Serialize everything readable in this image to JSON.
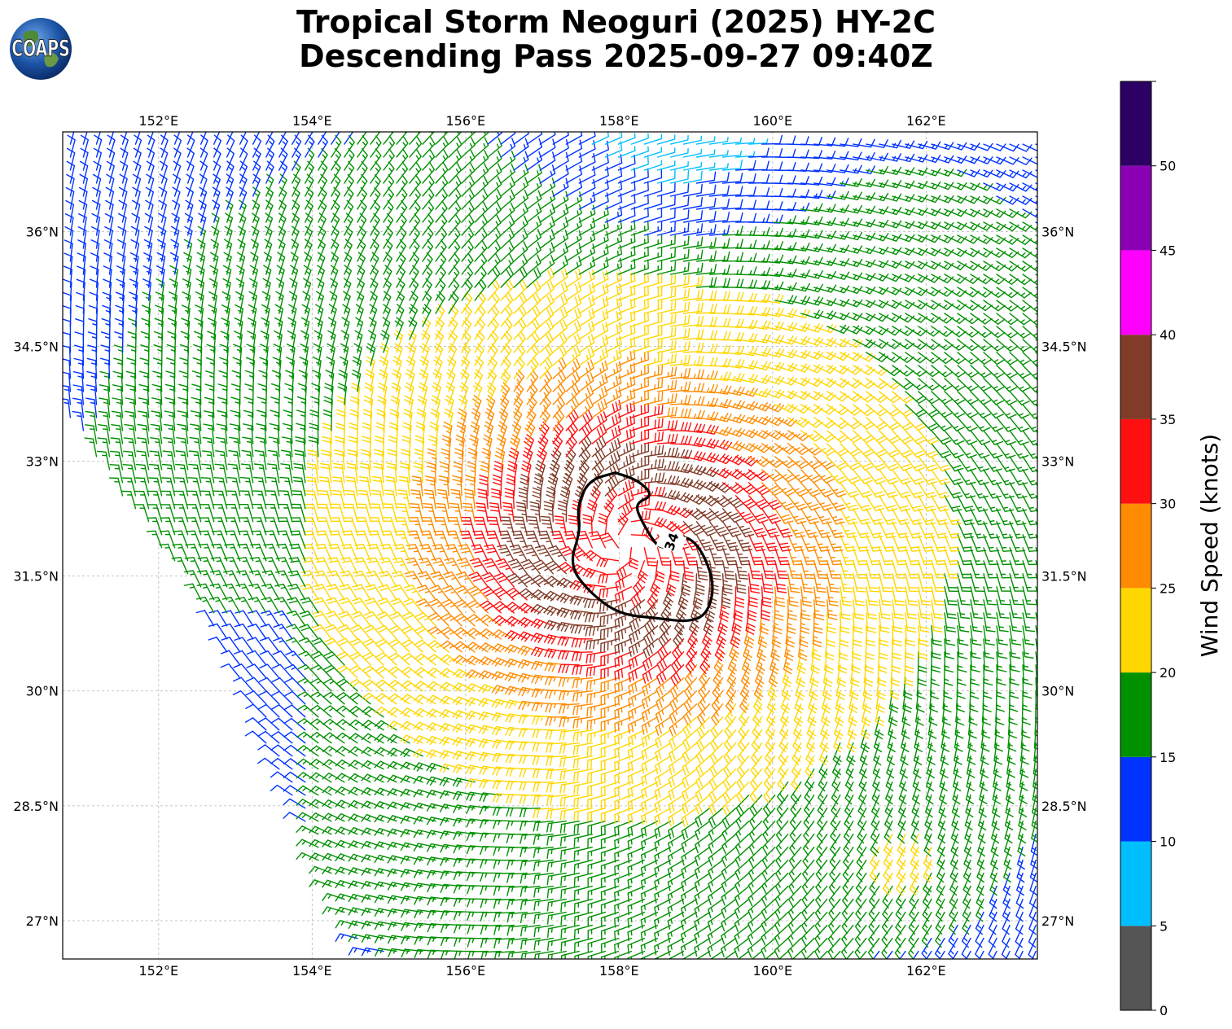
{
  "title": {
    "line1": "Tropical Storm Neoguri (2025) HY-2C",
    "line2": "Descending Pass 2025-09-27 09:40Z"
  },
  "logo": {
    "text": "COAPS"
  },
  "map": {
    "lon_range": [
      150.75,
      163.45
    ],
    "lat_range": [
      26.5,
      37.3
    ],
    "lon_ticks": [
      152,
      154,
      156,
      158,
      160,
      162
    ],
    "lon_tick_labels": [
      "152°E",
      "154°E",
      "156°E",
      "158°E",
      "160°E",
      "162°E"
    ],
    "lat_ticks": [
      27,
      28.5,
      30,
      31.5,
      33,
      34.5,
      36
    ],
    "lat_tick_labels": [
      "27°N",
      "28.5°N",
      "30°N",
      "31.5°N",
      "33°N",
      "34.5°N",
      "36°N"
    ],
    "gridlines": true,
    "storm_center": {
      "lon": 158.1,
      "lat": 31.9
    },
    "contour": {
      "label": "34",
      "points": [
        [
          157.95,
          32.85
        ],
        [
          158.25,
          32.75
        ],
        [
          158.45,
          32.55
        ],
        [
          158.2,
          32.45
        ],
        [
          158.3,
          32.2
        ],
        [
          158.55,
          31.8
        ],
        [
          158.8,
          32.05
        ],
        [
          159.05,
          31.9
        ],
        [
          159.25,
          31.4
        ],
        [
          159.15,
          31.0
        ],
        [
          158.9,
          30.9
        ],
        [
          158.5,
          30.95
        ],
        [
          158.0,
          31.0
        ],
        [
          157.6,
          31.3
        ],
        [
          157.35,
          31.65
        ],
        [
          157.5,
          32.1
        ],
        [
          157.45,
          32.4
        ],
        [
          157.6,
          32.75
        ],
        [
          157.95,
          32.85
        ]
      ]
    }
  },
  "colorbar": {
    "title": "Wind Speed (knots)",
    "tick_labels": [
      "0",
      "5",
      "10",
      "15",
      "20",
      "25",
      "30",
      "35",
      "40",
      "45",
      "50"
    ],
    "bins": [
      {
        "min": 0,
        "max": 5,
        "color": "#555555"
      },
      {
        "min": 5,
        "max": 10,
        "color": "#00bfff"
      },
      {
        "min": 10,
        "max": 15,
        "color": "#0033ff"
      },
      {
        "min": 15,
        "max": 20,
        "color": "#009100"
      },
      {
        "min": 20,
        "max": 25,
        "color": "#ffd700"
      },
      {
        "min": 25,
        "max": 30,
        "color": "#ff8c00"
      },
      {
        "min": 30,
        "max": 35,
        "color": "#ff1010"
      },
      {
        "min": 35,
        "max": 40,
        "color": "#803c28"
      },
      {
        "min": 40,
        "max": 45,
        "color": "#ff00ff"
      },
      {
        "min": 45,
        "max": 50,
        "color": "#8c00b4"
      },
      {
        "min": 50,
        "max": 55,
        "color": "#2d0064"
      }
    ]
  }
}
